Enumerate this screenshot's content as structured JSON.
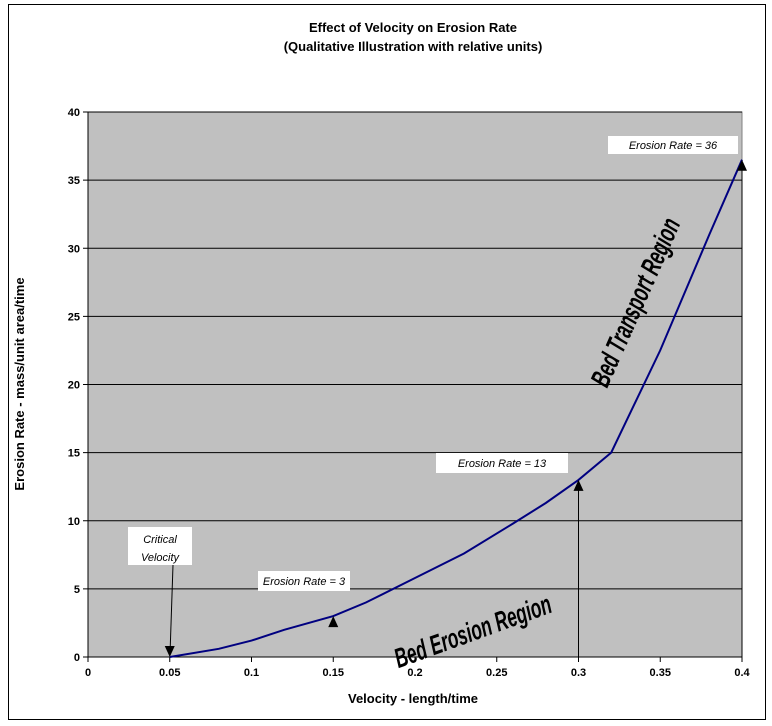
{
  "chart_data": {
    "type": "line",
    "title": "Effect of Velocity on Erosion Rate",
    "subtitle": "(Qualitative Illustration with relative units)",
    "xlabel": "Velocity - length/time",
    "ylabel": "Erosion Rate - mass/unit area/time",
    "xlim": [
      0,
      0.4
    ],
    "ylim": [
      0,
      40
    ],
    "x_ticks": [
      "0",
      "0.05",
      "0.1",
      "0.15",
      "0.2",
      "0.25",
      "0.3",
      "0.35",
      "0.4"
    ],
    "y_ticks": [
      "0",
      "5",
      "10",
      "15",
      "20",
      "25",
      "30",
      "35",
      "40"
    ],
    "grid": "horizontal",
    "legend": "none",
    "plot_background": "#c0c0c0",
    "series": [
      {
        "color": "#000080",
        "x": [
          0.05,
          0.08,
          0.1,
          0.12,
          0.15,
          0.17,
          0.2,
          0.23,
          0.26,
          0.28,
          0.3,
          0.32,
          0.35,
          0.38,
          0.4
        ],
        "y": [
          0,
          0.6,
          1.2,
          2.0,
          3.0,
          4.0,
          5.8,
          7.6,
          9.8,
          11.3,
          13.0,
          15.0,
          22.5,
          31.0,
          36.5
        ]
      }
    ],
    "annotations": [
      {
        "id": "critical",
        "lines": [
          "Critical",
          "Velocity"
        ],
        "arrow_x": 0.05,
        "arrow_y": 0
      },
      {
        "id": "er3",
        "text": "Erosion Rate = 3",
        "arrow_x": 0.15,
        "arrow_y": 3
      },
      {
        "id": "er13",
        "text": "Erosion Rate = 13",
        "arrow_x": 0.3,
        "arrow_y": 13
      },
      {
        "id": "er36",
        "text": "Erosion Rate = 36",
        "arrow_x": 0.4,
        "arrow_y": 36.5
      }
    ],
    "regions": [
      {
        "id": "bed-erosion",
        "text": "Bed Erosion Region"
      },
      {
        "id": "bed-transport",
        "text": "Bed Transport Region"
      }
    ]
  }
}
